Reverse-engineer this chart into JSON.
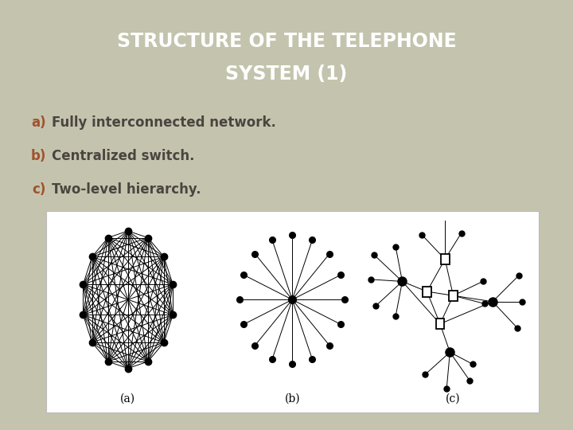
{
  "title_line1": "STRUCTURE OF THE TELEPHONE",
  "title_line2": "SYSTEM (1)",
  "title_bg": "#595047",
  "title_color": "#ffffff",
  "body_bg": "#c4c4ae",
  "diagram_bg": "#ffffff",
  "label_color": "#a0522d",
  "text_color": "#4a4540",
  "items": [
    {
      "label": "a)",
      "text": "Fully interconnected network."
    },
    {
      "label": "b)",
      "text": "Centralized switch."
    },
    {
      "label": "c)",
      "text": "Two-level hierarchy."
    }
  ],
  "captions": [
    "(a)",
    "(b)",
    "(c)"
  ],
  "title_fontsize": 17,
  "body_fontsize": 12,
  "caption_fontsize": 10
}
